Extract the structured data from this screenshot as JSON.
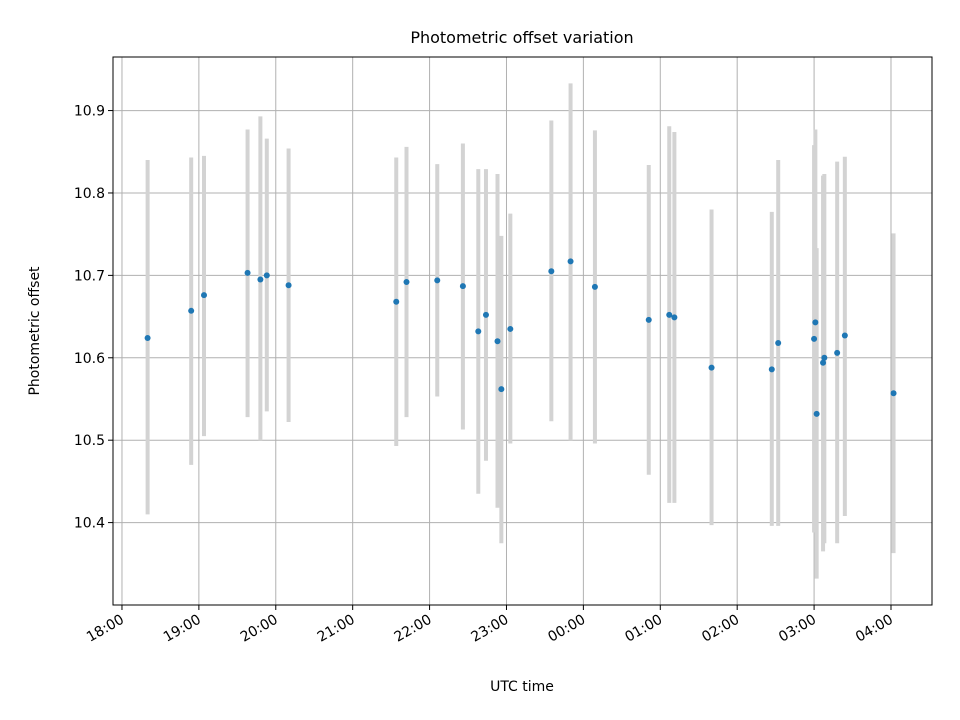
{
  "chart_data": {
    "type": "scatter",
    "title": "Photometric offset variation",
    "xlabel": "UTC time",
    "ylabel": "Photometric offset",
    "x_ticks": [
      "18:00",
      "19:00",
      "20:00",
      "21:00",
      "22:00",
      "23:00",
      "00:00",
      "01:00",
      "02:00",
      "03:00",
      "04:00"
    ],
    "y_ticks": [
      "10.4",
      "10.5",
      "10.6",
      "10.7",
      "10.8",
      "10.9"
    ],
    "xlim": [
      "17:53",
      "04:32"
    ],
    "ylim": [
      10.3,
      10.965
    ],
    "grid": true,
    "colors": {
      "point": "#1f77b4",
      "errorbar": "#d3d3d3",
      "grid": "#b0b0b0"
    },
    "points": [
      {
        "x": "18:20",
        "y": 10.624,
        "ylow": 10.41,
        "yhigh": 10.84
      },
      {
        "x": "18:54",
        "y": 10.657,
        "ylow": 10.47,
        "yhigh": 10.843
      },
      {
        "x": "19:04",
        "y": 10.676,
        "ylow": 10.505,
        "yhigh": 10.845
      },
      {
        "x": "19:38",
        "y": 10.703,
        "ylow": 10.528,
        "yhigh": 10.877
      },
      {
        "x": "19:48",
        "y": 10.695,
        "ylow": 10.5,
        "yhigh": 10.893
      },
      {
        "x": "19:53",
        "y": 10.7,
        "ylow": 10.535,
        "yhigh": 10.866
      },
      {
        "x": "20:10",
        "y": 10.688,
        "ylow": 10.522,
        "yhigh": 10.854
      },
      {
        "x": "21:34",
        "y": 10.668,
        "ylow": 10.493,
        "yhigh": 10.843
      },
      {
        "x": "21:42",
        "y": 10.692,
        "ylow": 10.528,
        "yhigh": 10.856
      },
      {
        "x": "22:06",
        "y": 10.694,
        "ylow": 10.553,
        "yhigh": 10.835
      },
      {
        "x": "22:26",
        "y": 10.687,
        "ylow": 10.513,
        "yhigh": 10.86
      },
      {
        "x": "22:38",
        "y": 10.632,
        "ylow": 10.435,
        "yhigh": 10.829
      },
      {
        "x": "22:44",
        "y": 10.652,
        "ylow": 10.475,
        "yhigh": 10.829
      },
      {
        "x": "22:53",
        "y": 10.62,
        "ylow": 10.418,
        "yhigh": 10.823
      },
      {
        "x": "22:56",
        "y": 10.562,
        "ylow": 10.375,
        "yhigh": 10.748
      },
      {
        "x": "23:03",
        "y": 10.635,
        "ylow": 10.496,
        "yhigh": 10.775
      },
      {
        "x": "23:35",
        "y": 10.705,
        "ylow": 10.523,
        "yhigh": 10.888
      },
      {
        "x": "23:50",
        "y": 10.717,
        "ylow": 10.5,
        "yhigh": 10.933
      },
      {
        "x": "00:09",
        "y": 10.686,
        "ylow": 10.496,
        "yhigh": 10.876
      },
      {
        "x": "00:51",
        "y": 10.646,
        "ylow": 10.458,
        "yhigh": 10.834
      },
      {
        "x": "01:07",
        "y": 10.652,
        "ylow": 10.424,
        "yhigh": 10.881
      },
      {
        "x": "01:11",
        "y": 10.649,
        "ylow": 10.424,
        "yhigh": 10.874
      },
      {
        "x": "01:40",
        "y": 10.588,
        "ylow": 10.397,
        "yhigh": 10.78
      },
      {
        "x": "02:27",
        "y": 10.586,
        "ylow": 10.396,
        "yhigh": 10.777
      },
      {
        "x": "02:32",
        "y": 10.618,
        "ylow": 10.396,
        "yhigh": 10.84
      },
      {
        "x": "03:00",
        "y": 10.623,
        "ylow": 10.388,
        "yhigh": 10.858
      },
      {
        "x": "03:01",
        "y": 10.643,
        "ylow": 10.405,
        "yhigh": 10.877
      },
      {
        "x": "03:02",
        "y": 10.532,
        "ylow": 10.332,
        "yhigh": 10.733
      },
      {
        "x": "03:07",
        "y": 10.594,
        "ylow": 10.365,
        "yhigh": 10.821
      },
      {
        "x": "03:08",
        "y": 10.6,
        "ylow": 10.375,
        "yhigh": 10.823
      },
      {
        "x": "03:18",
        "y": 10.606,
        "ylow": 10.375,
        "yhigh": 10.838
      },
      {
        "x": "03:24",
        "y": 10.627,
        "ylow": 10.408,
        "yhigh": 10.844
      },
      {
        "x": "04:02",
        "y": 10.557,
        "ylow": 10.363,
        "yhigh": 10.751
      }
    ]
  }
}
